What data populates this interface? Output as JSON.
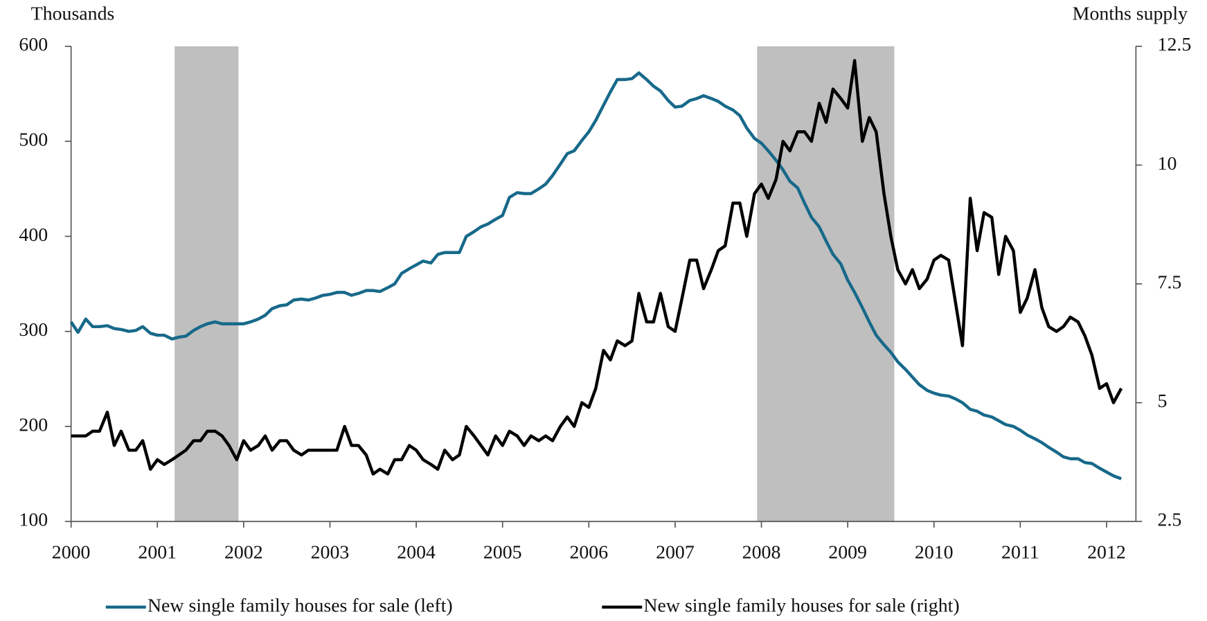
{
  "chart_data": {
    "type": "line",
    "y_label": "Thousands",
    "y2_label": "Months supply",
    "xlim": [
      2000,
      2012.34
    ],
    "xticks": [
      2000,
      2001,
      2002,
      2003,
      2004,
      2005,
      2006,
      2007,
      2008,
      2009,
      2010,
      2011,
      2012
    ],
    "ylim": [
      100,
      600
    ],
    "yticks": [
      100,
      200,
      300,
      400,
      500,
      600
    ],
    "y2lim": [
      2.5,
      12.5
    ],
    "y2ticks": [
      2.5,
      5,
      7.5,
      10,
      12.5
    ],
    "shaded_periods": [
      [
        2001.2,
        2001.94
      ],
      [
        2007.95,
        2009.54
      ]
    ],
    "shade_color": "#bfbfbf",
    "legend": "bottom",
    "x": [
      2000.0,
      2000.08,
      2000.17,
      2000.25,
      2000.33,
      2000.42,
      2000.5,
      2000.58,
      2000.67,
      2000.75,
      2000.83,
      2000.92,
      2001.0,
      2001.08,
      2001.17,
      2001.25,
      2001.33,
      2001.42,
      2001.5,
      2001.58,
      2001.67,
      2001.75,
      2001.83,
      2001.92,
      2002.0,
      2002.08,
      2002.17,
      2002.25,
      2002.33,
      2002.42,
      2002.5,
      2002.58,
      2002.67,
      2002.75,
      2002.83,
      2002.92,
      2003.0,
      2003.08,
      2003.17,
      2003.25,
      2003.33,
      2003.42,
      2003.5,
      2003.58,
      2003.67,
      2003.75,
      2003.83,
      2003.92,
      2004.0,
      2004.08,
      2004.17,
      2004.25,
      2004.33,
      2004.42,
      2004.5,
      2004.58,
      2004.67,
      2004.75,
      2004.83,
      2004.92,
      2005.0,
      2005.08,
      2005.17,
      2005.25,
      2005.33,
      2005.42,
      2005.5,
      2005.58,
      2005.67,
      2005.75,
      2005.83,
      2005.92,
      2006.0,
      2006.08,
      2006.17,
      2006.25,
      2006.33,
      2006.42,
      2006.5,
      2006.58,
      2006.67,
      2006.75,
      2006.83,
      2006.92,
      2007.0,
      2007.08,
      2007.17,
      2007.25,
      2007.33,
      2007.42,
      2007.5,
      2007.58,
      2007.67,
      2007.75,
      2007.83,
      2007.92,
      2008.0,
      2008.08,
      2008.17,
      2008.25,
      2008.33,
      2008.42,
      2008.5,
      2008.58,
      2008.67,
      2008.75,
      2008.83,
      2008.92,
      2009.0,
      2009.08,
      2009.17,
      2009.25,
      2009.33,
      2009.42,
      2009.5,
      2009.58,
      2009.67,
      2009.75,
      2009.83,
      2009.92,
      2010.0,
      2010.08,
      2010.17,
      2010.25,
      2010.33,
      2010.42,
      2010.5,
      2010.58,
      2010.67,
      2010.75,
      2010.83,
      2010.92,
      2011.0,
      2011.08,
      2011.17,
      2011.25,
      2011.33,
      2011.42,
      2011.5,
      2011.58,
      2011.67,
      2011.75,
      2011.83,
      2011.92,
      2012.0,
      2012.08,
      2012.17
    ],
    "series": [
      {
        "name": "New single family houses for sale (left)",
        "color": "#17698a",
        "values": [
          310,
          299,
          313,
          305,
          305,
          306,
          303,
          302,
          300,
          301,
          305,
          298,
          296,
          296,
          292,
          294,
          295,
          301,
          305,
          308,
          310,
          308,
          308,
          308,
          308,
          310,
          313,
          317,
          324,
          327,
          328,
          333,
          334,
          333,
          335,
          338,
          339,
          341,
          341,
          338,
          340,
          343,
          343,
          342,
          346,
          350,
          361,
          366,
          370,
          374,
          372,
          381,
          383,
          383,
          383,
          400,
          405,
          410,
          413,
          418,
          422,
          441,
          446,
          445,
          445,
          450,
          455,
          464,
          476,
          487,
          490,
          501,
          510,
          522,
          538,
          552,
          565,
          565,
          566,
          572,
          565,
          558,
          553,
          543,
          536,
          537,
          543,
          545,
          548,
          545,
          542,
          537,
          533,
          527,
          514,
          503,
          498,
          490,
          480,
          470,
          458,
          451,
          435,
          420,
          410,
          395,
          381,
          371,
          354,
          341,
          325,
          310,
          296,
          286,
          278,
          268,
          260,
          252,
          244,
          238,
          235,
          233,
          232,
          229,
          225,
          218,
          216,
          212,
          210,
          206,
          202,
          200,
          196,
          191,
          187,
          183,
          178,
          173,
          168,
          166,
          166,
          162,
          161,
          156,
          152,
          148,
          145
        ]
      },
      {
        "name": "New single family houses for sale (right)",
        "color": "#000000",
        "axis": "y2",
        "values": [
          4.3,
          4.3,
          4.3,
          4.4,
          4.4,
          4.8,
          4.1,
          4.4,
          4.0,
          4.0,
          4.2,
          3.6,
          3.8,
          3.7,
          3.8,
          3.9,
          4.0,
          4.2,
          4.2,
          4.4,
          4.4,
          4.3,
          4.1,
          3.8,
          4.2,
          4.0,
          4.1,
          4.3,
          4.0,
          4.2,
          4.2,
          4.0,
          3.9,
          4.0,
          4.0,
          4.0,
          4.0,
          4.0,
          4.5,
          4.1,
          4.1,
          3.9,
          3.5,
          3.6,
          3.5,
          3.8,
          3.8,
          4.1,
          4.0,
          3.8,
          3.7,
          3.6,
          4.0,
          3.8,
          3.9,
          4.5,
          4.3,
          4.1,
          3.9,
          4.3,
          4.1,
          4.4,
          4.3,
          4.1,
          4.3,
          4.2,
          4.3,
          4.2,
          4.5,
          4.7,
          4.5,
          5.0,
          4.9,
          5.3,
          6.1,
          5.9,
          6.3,
          6.2,
          6.3,
          7.3,
          6.7,
          6.7,
          7.3,
          6.6,
          6.5,
          7.2,
          8.0,
          8.0,
          7.4,
          7.8,
          8.2,
          8.3,
          9.2,
          9.2,
          8.5,
          9.4,
          9.6,
          9.3,
          9.7,
          10.5,
          10.3,
          10.7,
          10.7,
          10.5,
          11.3,
          10.9,
          11.6,
          11.4,
          11.2,
          12.2,
          10.5,
          11.0,
          10.7,
          9.4,
          8.5,
          7.8,
          7.5,
          7.8,
          7.4,
          7.6,
          8.0,
          8.1,
          8.0,
          7.1,
          6.2,
          9.3,
          8.2,
          9.0,
          8.9,
          7.7,
          8.5,
          8.2,
          6.9,
          7.2,
          7.8,
          7.0,
          6.6,
          6.5,
          6.6,
          6.8,
          6.7,
          6.4,
          6.0,
          5.3,
          5.4,
          5.0,
          5.3
        ]
      }
    ]
  }
}
